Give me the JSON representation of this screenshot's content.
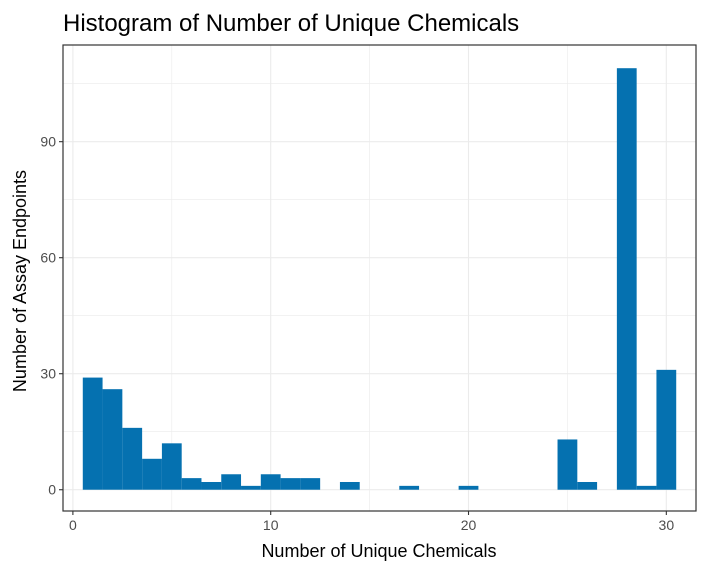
{
  "chart_data": {
    "type": "bar",
    "title": "Histogram of Number of Unique Chemicals",
    "xlabel": "Number of Unique Chemicals",
    "ylabel": "Number of Assay Endpoints",
    "xlim": [
      -0.5,
      31.5
    ],
    "ylim": [
      -5.5,
      115
    ],
    "x_ticks": [
      0,
      10,
      20,
      30
    ],
    "y_ticks": [
      0,
      30,
      60,
      90
    ],
    "bin_width": 1,
    "bar_color": "#0571b0",
    "grid": true,
    "legend": "none",
    "bins": [
      {
        "x": 1,
        "count": 29
      },
      {
        "x": 2,
        "count": 26
      },
      {
        "x": 3,
        "count": 16
      },
      {
        "x": 4,
        "count": 8
      },
      {
        "x": 5,
        "count": 12
      },
      {
        "x": 6,
        "count": 3
      },
      {
        "x": 7,
        "count": 2
      },
      {
        "x": 8,
        "count": 4
      },
      {
        "x": 9,
        "count": 1
      },
      {
        "x": 10,
        "count": 4
      },
      {
        "x": 11,
        "count": 3
      },
      {
        "x": 12,
        "count": 3
      },
      {
        "x": 13,
        "count": 0
      },
      {
        "x": 14,
        "count": 2
      },
      {
        "x": 15,
        "count": 0
      },
      {
        "x": 16,
        "count": 0
      },
      {
        "x": 17,
        "count": 1
      },
      {
        "x": 18,
        "count": 0
      },
      {
        "x": 19,
        "count": 0
      },
      {
        "x": 20,
        "count": 1
      },
      {
        "x": 21,
        "count": 0
      },
      {
        "x": 22,
        "count": 0
      },
      {
        "x": 23,
        "count": 0
      },
      {
        "x": 24,
        "count": 0
      },
      {
        "x": 25,
        "count": 13
      },
      {
        "x": 26,
        "count": 2
      },
      {
        "x": 27,
        "count": 0
      },
      {
        "x": 28,
        "count": 109
      },
      {
        "x": 29,
        "count": 1
      },
      {
        "x": 30,
        "count": 31
      }
    ]
  }
}
